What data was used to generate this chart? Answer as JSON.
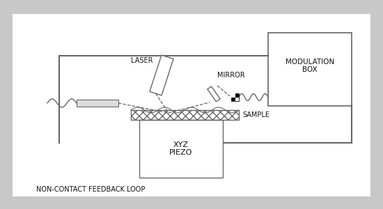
{
  "bg_color": "#c8c8c8",
  "panel_color": "#ffffff",
  "line_color": "#666666",
  "text_color": "#111111",
  "title": "NON-CONTACT FEEDBACK LOOP",
  "modulation_box_label": "MODULATION\nBOX",
  "laser_label": "LASER",
  "mirror_label": "MIRROR",
  "sample_label": "SAMPLE",
  "xyz_label": "XYZ\nPIEZO"
}
